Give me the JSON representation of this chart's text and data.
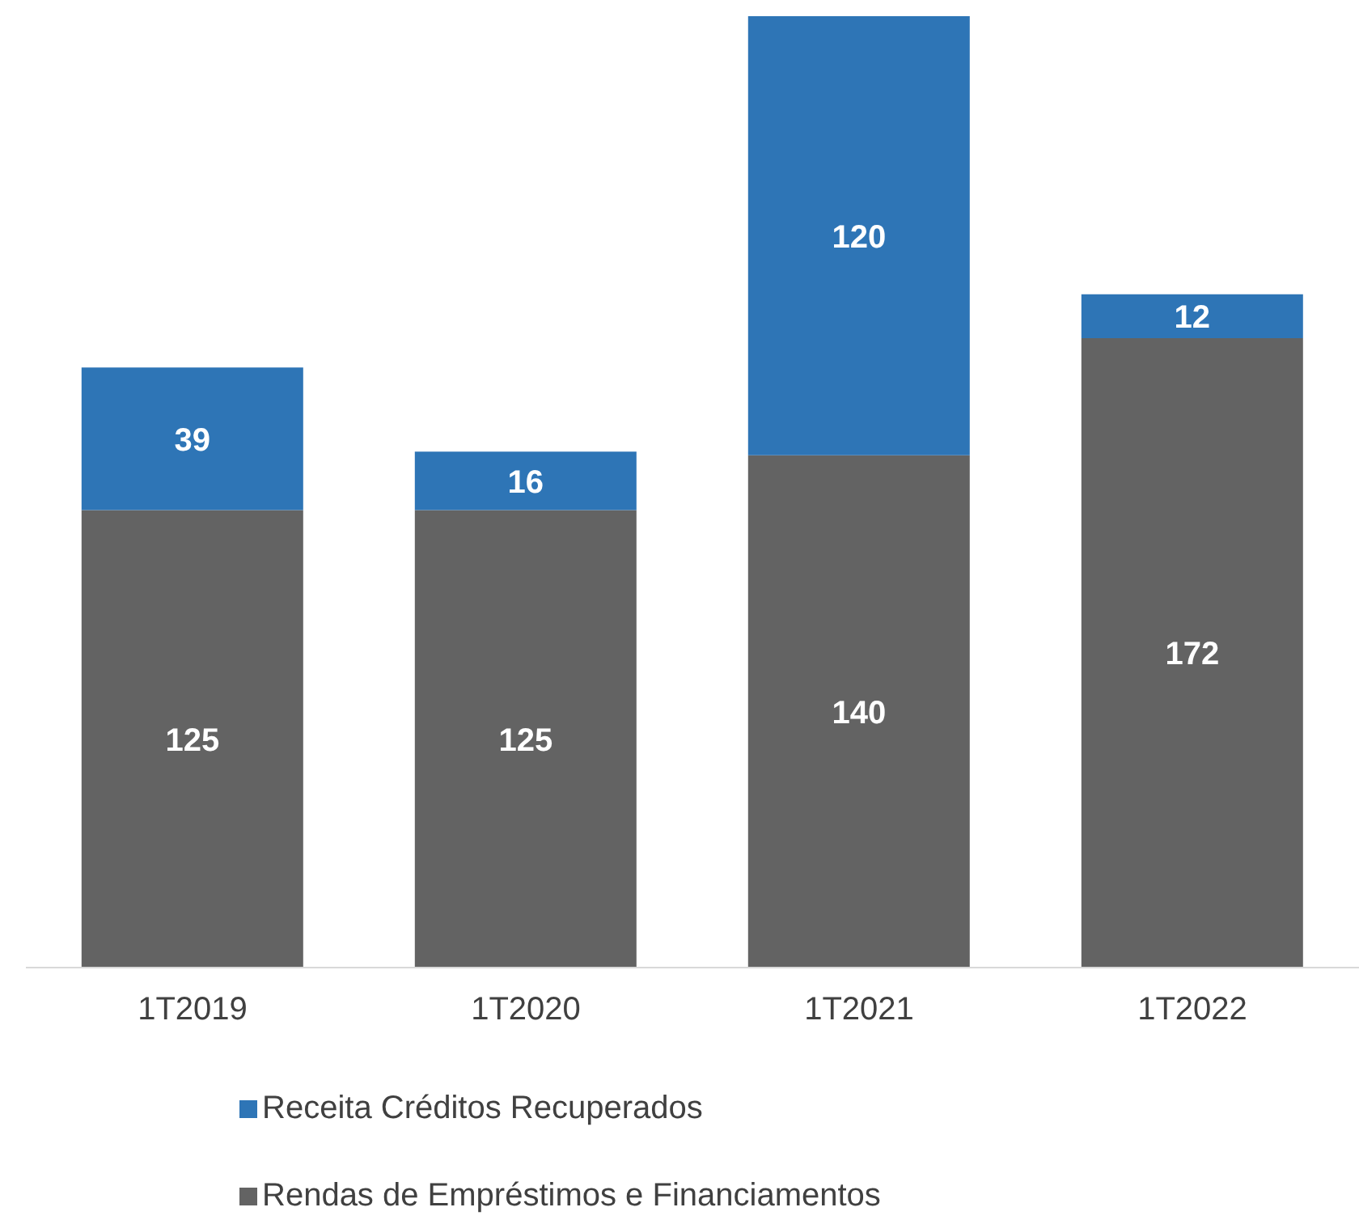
{
  "chart_data": {
    "type": "bar",
    "stacked": true,
    "data_labels": true,
    "legend": "bottom",
    "grid": false,
    "categories": [
      "1T2019",
      "1T2020",
      "1T2021",
      "1T2022"
    ],
    "series": [
      {
        "name": "Rendas de Empréstimos e Financiamentos",
        "color": "#636363",
        "values": [
          125,
          125,
          140,
          172
        ]
      },
      {
        "name": "Receita Créditos Recuperados",
        "color": "#2e75b6",
        "values": [
          39,
          16,
          120,
          12
        ]
      }
    ]
  }
}
